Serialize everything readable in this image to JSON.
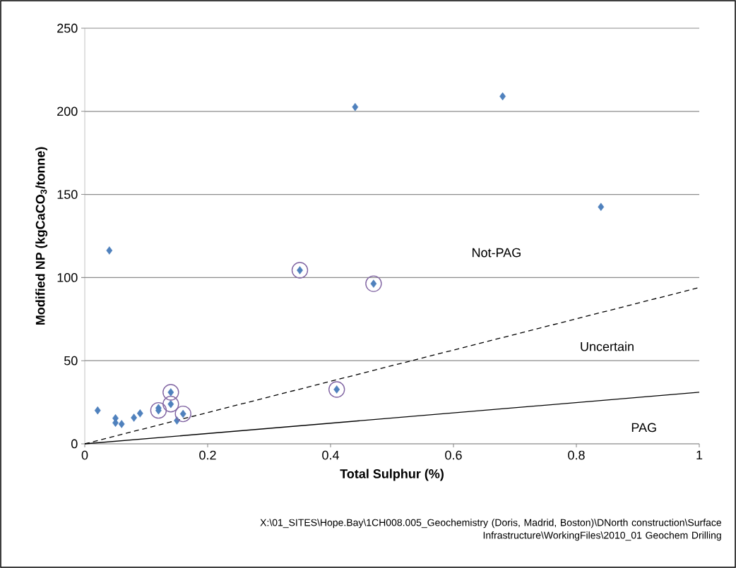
{
  "chart_data": {
    "type": "scatter",
    "xlabel": "Total Sulphur (%)",
    "ylabel": "Modified NP (kgCaCO$_{3}$/tonne)",
    "xlim": [
      0,
      1
    ],
    "ylim": [
      0,
      250
    ],
    "xticks": [
      0,
      0.2,
      0.4,
      0.6,
      0.8,
      1
    ],
    "yticks": [
      0,
      50,
      100,
      150,
      200,
      250
    ],
    "grid": "y",
    "series": [
      {
        "marker": "diamond",
        "color": "#4f81bd",
        "x": [
          0.021,
          0.05,
          0.05,
          0.06,
          0.08,
          0.09,
          0.12,
          0.12,
          0.14,
          0.14,
          0.15,
          0.16,
          0.04,
          0.35,
          0.47,
          0.41,
          0.44,
          0.68,
          0.84
        ],
        "values": [
          20.1,
          15.4,
          12.6,
          11.9,
          15.7,
          18.3,
          21.5,
          20.1,
          31,
          23.9,
          14,
          18,
          116.3,
          104.4,
          96.3,
          32.7,
          202.6,
          209,
          142.5
        ]
      },
      {
        "marker": "circle",
        "color": "#8064a2",
        "x": [
          0.12,
          0.14,
          0.14,
          0.16,
          0.35,
          0.47,
          0.41
        ],
        "values": [
          20.1,
          31,
          23.9,
          18,
          104.4,
          96.3,
          32.7
        ]
      },
      {
        "type": "line",
        "line_style": "solid",
        "marker": "none",
        "color": "#000000",
        "x": [
          0,
          1
        ],
        "values": [
          0,
          31
        ]
      },
      {
        "type": "line",
        "line_style": "dashed",
        "marker": "none",
        "color": "#000000",
        "x": [
          0,
          1
        ],
        "values": [
          0,
          94
        ]
      }
    ],
    "annotations": [
      "Not-PAG",
      "Uncertain",
      "PAG",
      "X:\\01_SITES\\Hope.Bay\\1CH008.005_Geochemistry (Doris, Madrid, Boston)\\DNorth construction\\Surface Infrastructure\\WorkingFiles\\2010_01 Geochem Drilling"
    ]
  }
}
